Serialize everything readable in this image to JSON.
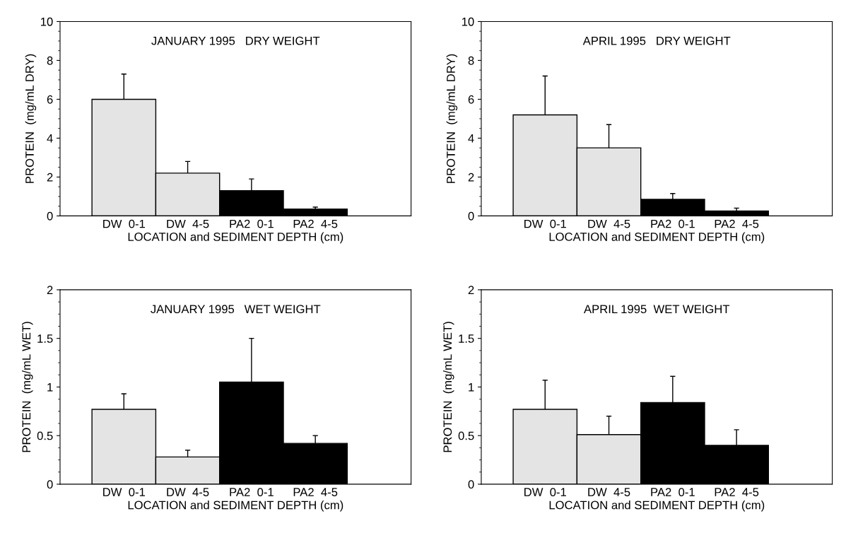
{
  "chart_data": [
    {
      "type": "bar",
      "title": "JANUARY 1995   DRY WEIGHT",
      "xlabel": "LOCATION and SEDIMENT DEPTH (cm)",
      "ylabel": "PROTEIN  (mg/mL DRY)",
      "categories": [
        "DW  0-1",
        "DW  4-5",
        "PA2  0-1",
        "PA2  4-5"
      ],
      "values": [
        6.0,
        2.2,
        1.3,
        0.35
      ],
      "colors": [
        "#e4e4e4",
        "#e4e4e4",
        "#000000",
        "#000000"
      ],
      "errors": [
        [
          6.0,
          7.3
        ],
        [
          2.2,
          2.8
        ],
        [
          1.3,
          1.9
        ],
        [
          0.35,
          0.45
        ]
      ],
      "ylim": [
        0,
        10
      ],
      "yticks": [
        0,
        2,
        4,
        6,
        8,
        10
      ]
    },
    {
      "type": "bar",
      "title": "APRIL 1995   DRY WEIGHT",
      "xlabel": "LOCATION and SEDIMENT DEPTH (cm)",
      "ylabel": "PROTEIN  (mg/mL DRY)",
      "categories": [
        "DW  0-1",
        "DW  4-5",
        "PA2  0-1",
        "PA2  4-5"
      ],
      "values": [
        5.2,
        3.5,
        0.85,
        0.25
      ],
      "colors": [
        "#e4e4e4",
        "#e4e4e4",
        "#000000",
        "#000000"
      ],
      "errors": [
        [
          5.2,
          7.2
        ],
        [
          3.5,
          4.7
        ],
        [
          0.85,
          1.15
        ],
        [
          0.25,
          0.4
        ]
      ],
      "ylim": [
        0,
        10
      ],
      "yticks": [
        0,
        2,
        4,
        6,
        8,
        10
      ]
    },
    {
      "type": "bar",
      "title": "JANUARY 1995   WET WEIGHT",
      "xlabel": "LOCATION and SEDIMENT DEPTH (cm)",
      "ylabel": "PROTEIN  (mg/mL WET)",
      "categories": [
        "DW  0-1",
        "DW  4-5",
        "PA2  0-1",
        "PA2  4-5"
      ],
      "values": [
        0.77,
        0.28,
        1.05,
        0.42
      ],
      "colors": [
        "#e4e4e4",
        "#e4e4e4",
        "#000000",
        "#000000"
      ],
      "errors": [
        [
          0.77,
          0.93
        ],
        [
          0.28,
          0.35
        ],
        [
          1.05,
          1.5
        ],
        [
          0.42,
          0.5
        ]
      ],
      "ylim": [
        0,
        2
      ],
      "yticks": [
        0,
        0.5,
        1,
        1.5,
        2
      ]
    },
    {
      "type": "bar",
      "title": "APRIL 1995  WET WEIGHT",
      "xlabel": "LOCATION and SEDIMENT DEPTH (cm)",
      "ylabel": "PROTEIN  (mg/mL WET)",
      "categories": [
        "DW  0-1",
        "DW  4-5",
        "PA2  0-1",
        "PA2  4-5"
      ],
      "values": [
        0.77,
        0.51,
        0.84,
        0.4
      ],
      "colors": [
        "#e4e4e4",
        "#e4e4e4",
        "#000000",
        "#000000"
      ],
      "errors": [
        [
          0.77,
          1.07
        ],
        [
          0.51,
          0.7
        ],
        [
          0.84,
          1.11
        ],
        [
          0.4,
          0.56
        ]
      ],
      "ylim": [
        0,
        2
      ],
      "yticks": [
        0,
        0.5,
        1,
        1.5,
        2
      ]
    }
  ]
}
